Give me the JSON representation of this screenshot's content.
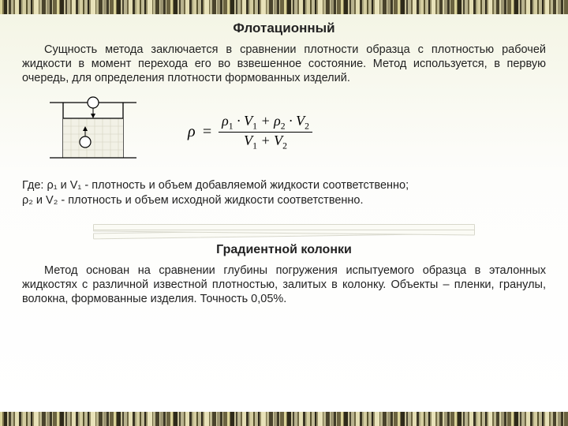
{
  "barcode": {
    "colors": [
      "#d9d299",
      "#7d744b",
      "#2e2a1a",
      "#c8c19a",
      "#4a4530",
      "#b8b28e",
      "#6e6644",
      "#e3ddb3",
      "#3a3524",
      "#aaa57e",
      "#d4cda0",
      "#58522f",
      "#c0ba94",
      "#2b271a",
      "#938c66",
      "#e8e2b9",
      "#756d47",
      "#bdb78f",
      "#49432c",
      "#d8d2a7",
      "#9a9370",
      "#3f3a27",
      "#cfc9a0",
      "#6a6240"
    ],
    "widths": [
      3,
      2,
      5,
      2,
      3,
      4,
      2,
      6,
      3,
      2,
      5,
      2,
      4,
      3,
      2,
      6,
      2,
      3,
      5,
      2,
      4,
      3,
      2,
      5
    ]
  },
  "title1": "Флотационный",
  "para1": "Сущность метода заключается в сравнении плотности образца с плотностью рабочей жидкости в момент перехода его во взвешенное состояние. Метод используется, в первую очередь, для определения плотности формованных изделий.",
  "formula": {
    "lhs": "ρ",
    "eq": "=",
    "num_parts": [
      "ρ",
      "1",
      " · V",
      "1",
      " + ρ",
      "2",
      " · V",
      "2"
    ],
    "den_parts": [
      "V",
      "1",
      " + V",
      "2"
    ]
  },
  "legend1": "Где: ρ₁ и V₁ - плотность и объем добавляемой жидкости соответственно;",
  "legend2": "ρ₂ и V₂ - плотность и объем исходной жидкости соответственно.",
  "title2": "Градиентной колонки",
  "para2": "Метод основан на сравнении глубины погружения испытуемого образца в эталонных жидкостях с различной известной плотностью, залитых в колонку. Объекты – пленки, гранулы, волокна, формованные изделия. Точность 0,05%.",
  "diagram": {
    "stroke": "#000000",
    "fill": "#ffffff",
    "hatch_fill": "#f0f0e8"
  }
}
